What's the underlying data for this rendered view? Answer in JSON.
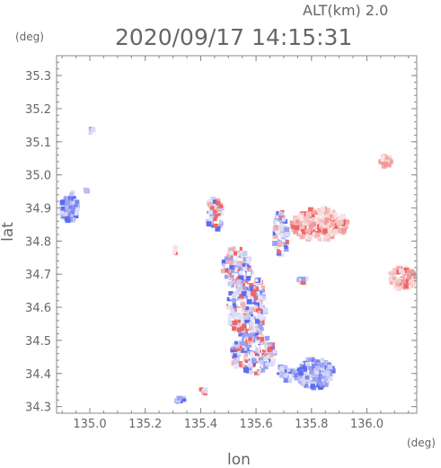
{
  "header": {
    "alt_label": "ALT(km)  2.0",
    "timestamp": "2020/09/17 14:15:31"
  },
  "units": {
    "y_unit": "(deg)",
    "x_unit": "(deg)"
  },
  "chart_data": {
    "type": "heatmap",
    "title": "2020/09/17 14:15:31",
    "subtitle": "ALT(km)  2.0",
    "xlabel": "lon",
    "ylabel": "lat",
    "x_unit": "(deg)",
    "y_unit": "(deg)",
    "xlim": [
      134.88,
      136.18
    ],
    "ylim": [
      34.28,
      35.36
    ],
    "x_ticks": [
      "135.0",
      "135.2",
      "135.4",
      "135.6",
      "135.8",
      "136.0"
    ],
    "y_ticks": [
      "34.3",
      "34.4",
      "34.5",
      "34.6",
      "34.7",
      "34.8",
      "34.9",
      "35.0",
      "35.1",
      "35.2",
      "35.3"
    ],
    "grid": false,
    "colormap": {
      "negative": "#5b6cf0",
      "neutral": "#dcdcf6",
      "positive": "#f06464"
    },
    "blobs": [
      {
        "lon": 134.925,
        "lat": 34.905,
        "rlon": 0.035,
        "rlat": 0.045,
        "kind": "neg"
      },
      {
        "lon": 134.985,
        "lat": 34.955,
        "rlon": 0.008,
        "rlat": 0.008,
        "kind": "neg"
      },
      {
        "lon": 135.005,
        "lat": 35.14,
        "rlon": 0.01,
        "rlat": 0.015,
        "kind": "neg"
      },
      {
        "lon": 135.32,
        "lat": 34.323,
        "rlon": 0.025,
        "rlat": 0.01,
        "kind": "neg"
      },
      {
        "lon": 135.415,
        "lat": 34.35,
        "rlon": 0.015,
        "rlat": 0.01,
        "kind": "mixed"
      },
      {
        "lon": 135.57,
        "lat": 34.6,
        "rlon": 0.07,
        "rlat": 0.11,
        "kind": "mixed"
      },
      {
        "lon": 135.59,
        "lat": 34.46,
        "rlon": 0.08,
        "rlat": 0.06,
        "kind": "mixed"
      },
      {
        "lon": 135.53,
        "lat": 34.72,
        "rlon": 0.05,
        "rlat": 0.06,
        "kind": "mixed"
      },
      {
        "lon": 135.45,
        "lat": 34.88,
        "rlon": 0.03,
        "rlat": 0.05,
        "kind": "mixed"
      },
      {
        "lon": 135.69,
        "lat": 34.82,
        "rlon": 0.025,
        "rlat": 0.07,
        "kind": "mixed"
      },
      {
        "lon": 135.83,
        "lat": 34.85,
        "rlon": 0.1,
        "rlat": 0.05,
        "kind": "pos"
      },
      {
        "lon": 135.81,
        "lat": 34.4,
        "rlon": 0.07,
        "rlat": 0.045,
        "kind": "neg"
      },
      {
        "lon": 136.13,
        "lat": 34.69,
        "rlon": 0.05,
        "rlat": 0.035,
        "kind": "pos"
      },
      {
        "lon": 136.07,
        "lat": 35.04,
        "rlon": 0.025,
        "rlat": 0.02,
        "kind": "pos"
      },
      {
        "lon": 135.77,
        "lat": 34.68,
        "rlon": 0.015,
        "rlat": 0.015,
        "kind": "mixed"
      },
      {
        "lon": 135.31,
        "lat": 34.77,
        "rlon": 0.006,
        "rlat": 0.012,
        "kind": "pos"
      },
      {
        "lon": 135.705,
        "lat": 34.4,
        "rlon": 0.03,
        "rlat": 0.025,
        "kind": "neg"
      }
    ]
  }
}
